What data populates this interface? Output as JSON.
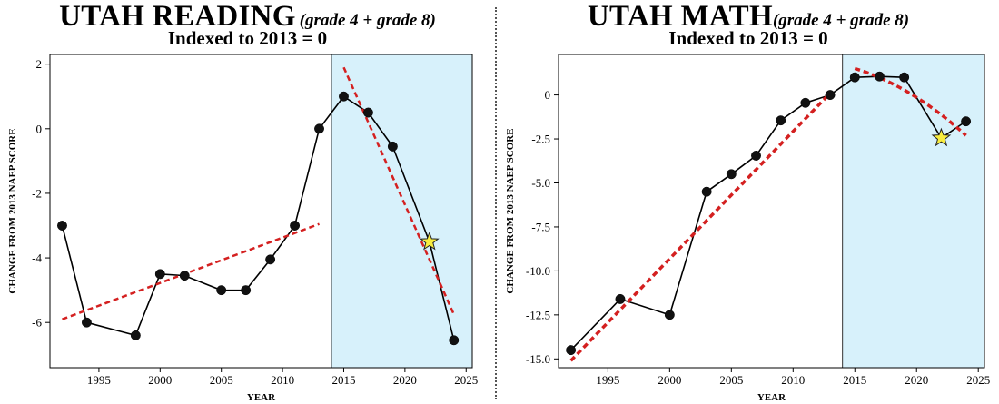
{
  "chart_data": [
    {
      "type": "line",
      "title": "UTAH READING",
      "title_suffix": "(grade 4 + grade 8)",
      "subtitle": "Indexed to 2013 = 0",
      "xlabel": "YEAR",
      "ylabel": "CHANGE FROM 2013 NAEP SCORE",
      "xlim": [
        1991,
        2025.5
      ],
      "ylim": [
        -7.4,
        2.3
      ],
      "x_ticks": [
        1995,
        2000,
        2005,
        2010,
        2015,
        2020,
        2025
      ],
      "y_ticks": [
        2,
        0,
        -2,
        -4,
        -6
      ],
      "y_tick_labels": [
        "2",
        "0",
        "-2",
        "-4",
        "-6"
      ],
      "shaded_region": {
        "x_start": 2014,
        "x_end": 2025.5,
        "color": "#d7f1fb"
      },
      "series": [
        {
          "x": [
            1992,
            1994,
            1998,
            2000,
            2002,
            2005,
            2007,
            2009,
            2011,
            2013,
            2015,
            2017,
            2019,
            2022,
            2024
          ],
          "y": [
            -3.0,
            -6.0,
            -6.4,
            -4.5,
            -4.55,
            -5.0,
            -5.0,
            -4.05,
            -3.0,
            0.0,
            1.0,
            0.5,
            -0.55,
            -3.5,
            -6.55
          ],
          "color": "#000000",
          "star_index": 13
        }
      ],
      "trendlines": [
        {
          "x": [
            1992,
            2013
          ],
          "y": [
            -5.9,
            -2.95
          ],
          "color": "#d42020"
        },
        {
          "x": [
            2015,
            2024
          ],
          "y": [
            1.9,
            -5.75
          ],
          "color": "#d42020"
        }
      ]
    },
    {
      "type": "line",
      "title": "UTAH MATH",
      "title_suffix": "(grade 4 + grade 8)",
      "subtitle": "Indexed to 2013 = 0",
      "xlabel": "YEAR",
      "ylabel": "CHANGE FROM 2013 NAEP SCORE",
      "xlim": [
        1991,
        2025.5
      ],
      "ylim": [
        -15.5,
        2.3
      ],
      "x_ticks": [
        1995,
        2000,
        2005,
        2010,
        2015,
        2020,
        2025
      ],
      "y_ticks": [
        0,
        -2.5,
        -5,
        -7.5,
        -10,
        -12.5,
        -15
      ],
      "y_tick_labels": [
        "0",
        "-2.5",
        "-5.0",
        "-7.5",
        "-10.0",
        "-12.5",
        "-15.0"
      ],
      "shaded_region": {
        "x_start": 2014,
        "x_end": 2025.5,
        "color": "#d7f1fb"
      },
      "series": [
        {
          "x": [
            1992,
            1996,
            2000,
            2003,
            2005,
            2007,
            2009,
            2011,
            2013,
            2015,
            2017,
            2019,
            2022,
            2024
          ],
          "y": [
            -14.5,
            -11.6,
            -12.5,
            -5.5,
            -4.5,
            -3.45,
            -1.45,
            -0.45,
            0.0,
            1.0,
            1.05,
            1.0,
            -2.45,
            -1.5
          ],
          "color": "#000000",
          "star_index": 12
        }
      ],
      "trendlines": [
        {
          "x": [
            1992,
            2013
          ],
          "y": [
            -15.1,
            0.1
          ],
          "color": "#d42020"
        },
        {
          "x": [
            2015,
            2024
          ],
          "y": [
            1.5,
            -2.3
          ],
          "color": "#d42020",
          "curve": true
        }
      ]
    }
  ]
}
